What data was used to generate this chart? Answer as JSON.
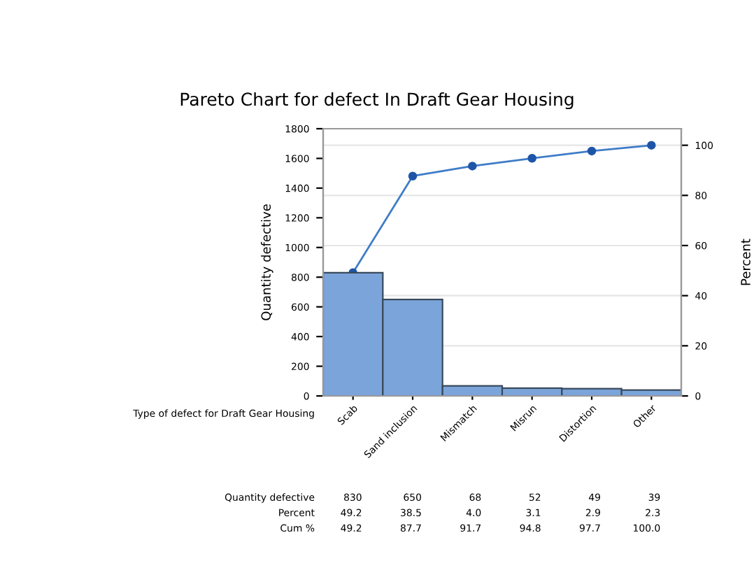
{
  "chart_data": {
    "type": "bar",
    "title": "Pareto Chart for defect In Draft Gear Housing",
    "xlabel": "Type of defect for Draft Gear Housing",
    "ylabel": "Quantity defective",
    "y2label": "Percent",
    "categories": [
      "Scab",
      "Sand inclusion",
      "Mismatch",
      "Misrun",
      "Distortion",
      "Other"
    ],
    "series": [
      {
        "color": "#7ba5da",
        "values": [
          830,
          650,
          68,
          52,
          49,
          39
        ],
        "value_labels": [
          "830",
          "650",
          "68",
          "52",
          "49",
          "39"
        ]
      },
      {
        "type": "line",
        "axis": "y2",
        "color": "#3f7cc8",
        "marker": "circle",
        "values": [
          49.2,
          87.7,
          91.7,
          94.8,
          97.7,
          100.0
        ],
        "value_labels": [
          "49.2",
          "87.7",
          "91.7",
          "94.8",
          "97.7",
          "100.0"
        ]
      }
    ],
    "annotations": [
      "Quantity defective",
      "Percent",
      "Cum %",
      "49.2",
      "38.5",
      "4.0",
      "3.1",
      "2.9",
      "2.3"
    ],
    "ylim": [
      0,
      1800
    ],
    "yticks": [
      0,
      200,
      400,
      600,
      800,
      1000,
      1200,
      1400,
      1600,
      1800
    ],
    "y2lim": [
      0,
      106.6
    ],
    "y2ticks": [
      0,
      20,
      40,
      60,
      80,
      100
    ],
    "grid": "y"
  }
}
